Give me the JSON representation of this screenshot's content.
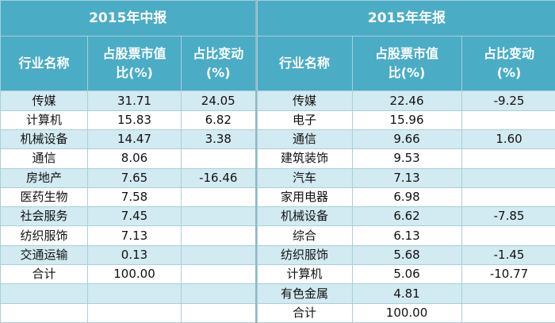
{
  "left": {
    "title": "2015年中报",
    "headers": [
      [
        "行业名称"
      ],
      [
        "占股票市值",
        "比(%)"
      ],
      [
        "占比变动",
        "(%)"
      ]
    ],
    "rows": [
      {
        "industry": "传媒",
        "share": "31.71",
        "change": "24.05"
      },
      {
        "industry": "计算机",
        "share": "15.83",
        "change": "6.82"
      },
      {
        "industry": "机械设备",
        "share": "14.47",
        "change": "3.38"
      },
      {
        "industry": "通信",
        "share": "8.06"
      },
      {
        "industry": "房地产",
        "share": "7.65",
        "change": "-16.46"
      },
      {
        "industry": "医药生物",
        "share": "7.58"
      },
      {
        "industry": "社会服务",
        "share": "7.45"
      },
      {
        "industry": "纺织服饰",
        "share": "7.13"
      },
      {
        "industry": "交通运输",
        "share": "0.13"
      },
      {
        "industry": "合计",
        "share": "100.00"
      }
    ]
  },
  "right": {
    "title": "2015年年报",
    "headers": [
      [
        "行业名称"
      ],
      [
        "占股票市值",
        "比(%)"
      ],
      [
        "占比变动",
        "(%)"
      ]
    ],
    "rows": [
      {
        "industry": "传媒",
        "share": "22.46",
        "change": "-9.25"
      },
      {
        "industry": "电子",
        "share": "15.96"
      },
      {
        "industry": "通信",
        "share": "9.66",
        "change": "1.60"
      },
      {
        "industry": "建筑装饰",
        "share": "9.53"
      },
      {
        "industry": "汽车",
        "share": "7.13"
      },
      {
        "industry": "家用电器",
        "share": "6.98"
      },
      {
        "industry": "机械设备",
        "share": "6.62",
        "change": "-7.85"
      },
      {
        "industry": "综合",
        "share": "6.13"
      },
      {
        "industry": "纺织服饰",
        "share": "5.68",
        "change": "-1.45"
      },
      {
        "industry": "计算机",
        "share": "5.06",
        "change": "-10.77"
      },
      {
        "industry": "有色金属",
        "share": "4.81"
      },
      {
        "industry": "合计",
        "share": "100.00"
      }
    ]
  }
}
